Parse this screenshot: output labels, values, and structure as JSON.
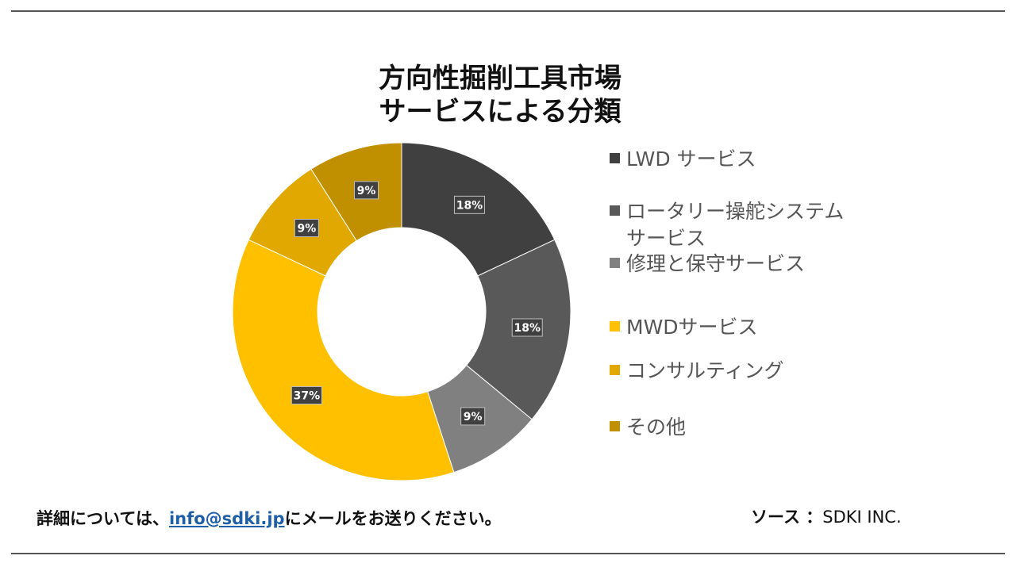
{
  "title_line1": "方向性掘削工具市場",
  "title_line2": "サービスによる分類",
  "chart_data": {
    "type": "pie",
    "donut": true,
    "series": [
      {
        "name": "LWD サービス",
        "value": 18,
        "label": "18%",
        "color": "#404040"
      },
      {
        "name": "ロータリー操舵システム サービス",
        "value": 18,
        "label": "18%",
        "color": "#595959"
      },
      {
        "name": "修理と保守サービス",
        "value": 9,
        "label": "9%",
        "color": "#808080"
      },
      {
        "name": "MWDサービス",
        "value": 37,
        "label": "37%",
        "color": "#ffc000"
      },
      {
        "name": "コンサルティング",
        "value": 9,
        "label": "9%",
        "color": "#e0a800"
      },
      {
        "name": "その他",
        "value": 9,
        "label": "9%",
        "color": "#c09000"
      }
    ],
    "legend_position": "right"
  },
  "footer": {
    "prefix": "詳細については、",
    "email": "info@sdki.jp",
    "suffix": "にメールをお送りください。",
    "source_label": "ソース ：",
    "source_value": "SDKI INC."
  }
}
